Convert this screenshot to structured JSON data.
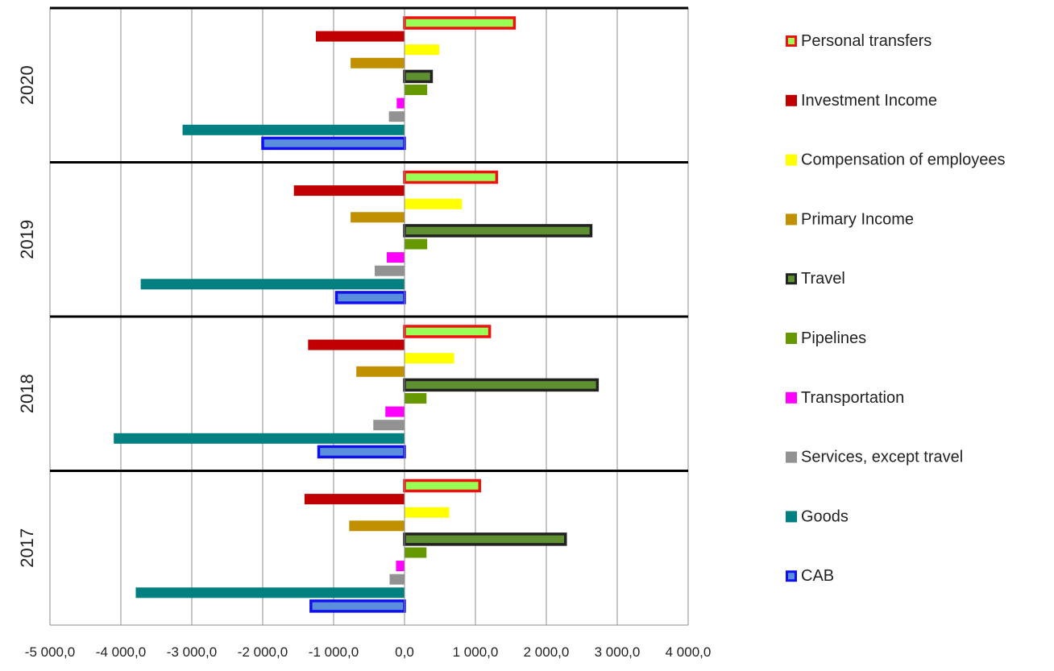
{
  "chart_data": {
    "type": "bar",
    "orientation": "horizontal",
    "categories": [
      "2020",
      "2019",
      "2018",
      "2017"
    ],
    "xlim": [
      -5000,
      4000
    ],
    "x_ticks": [
      -5000,
      -4000,
      -3000,
      -2000,
      -1000,
      0,
      1000,
      2000,
      3000,
      4000
    ],
    "x_tick_labels": [
      "-5 000,0",
      "-4 000,0",
      "-3 000,0",
      "-2 000,0",
      "-1 000,0",
      "0,0",
      "1 000,0",
      "2 000,0",
      "3 000,0",
      "4 000,0"
    ],
    "grid": true,
    "legend_position": "right",
    "title": "",
    "xlabel": "",
    "ylabel": "",
    "series": [
      {
        "name": "Personal transfers",
        "color": "#99ff55",
        "border": "#ee1111",
        "values": [
          1550,
          1300,
          1200,
          1060
        ]
      },
      {
        "name": "Investment Income",
        "color": "#c00000",
        "border": "",
        "values": [
          -1250,
          -1560,
          -1360,
          -1410
        ]
      },
      {
        "name": "Compensation of employees",
        "color": "#ffff00",
        "border": "",
        "values": [
          490,
          810,
          700,
          630
        ]
      },
      {
        "name": "Primary Income",
        "color": "#c09000",
        "border": "",
        "values": [
          -760,
          -760,
          -680,
          -780
        ]
      },
      {
        "name": "Travel",
        "color": "#5e8f30",
        "border": "#222222",
        "values": [
          380,
          2630,
          2720,
          2270
        ]
      },
      {
        "name": "Pipelines",
        "color": "#669900",
        "border": "",
        "values": [
          320,
          320,
          310,
          310
        ]
      },
      {
        "name": "Transportation",
        "color": "#ff00ff",
        "border": "",
        "values": [
          -110,
          -250,
          -270,
          -120
        ]
      },
      {
        "name": "Services, except travel",
        "color": "#929292",
        "border": "",
        "values": [
          -220,
          -420,
          -440,
          -210
        ]
      },
      {
        "name": "Goods",
        "color": "#008080",
        "border": "",
        "values": [
          -3130,
          -3720,
          -4100,
          -3790
        ]
      },
      {
        "name": "CAB",
        "color": "#5b8fdb",
        "border": "#1010ee",
        "values": [
          -2000,
          -960,
          -1210,
          -1320
        ]
      }
    ]
  }
}
